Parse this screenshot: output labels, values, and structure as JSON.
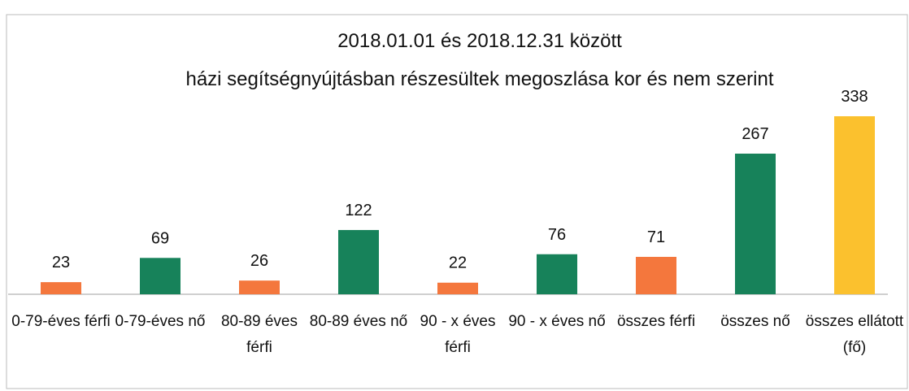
{
  "chart_data": {
    "type": "bar",
    "title": [
      "2018.01.01 és 2018.12.31 között",
      "házi segítségnyújtásban részesültek megoszlása kor és nem szerint"
    ],
    "categories": [
      "0-79-éves férfi",
      "0-79-éves nő",
      "80-89 éves férfi",
      "80-89 éves nő",
      "90 - x éves férfi",
      "90 - x éves nő",
      "összes férfi",
      "összes nő",
      "összes ellátott (fő)"
    ],
    "values": [
      23,
      69,
      26,
      122,
      22,
      76,
      71,
      267,
      338
    ],
    "colors": [
      "#f4773d",
      "#17825a",
      "#f4773d",
      "#17825a",
      "#f4773d",
      "#17825a",
      "#f4773d",
      "#17825a",
      "#fbc12e"
    ]
  }
}
